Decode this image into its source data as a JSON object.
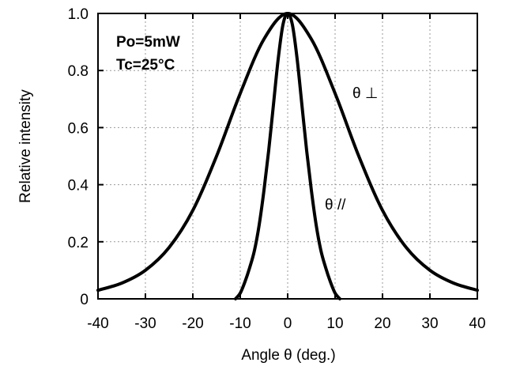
{
  "chart_data": {
    "type": "line",
    "xlabel": "Angle θ (deg.)",
    "ylabel": "Relative intensity",
    "xlim": [
      -40,
      40
    ],
    "ylim": [
      0,
      1
    ],
    "xticks": [
      -40,
      -30,
      -20,
      -10,
      0,
      10,
      20,
      30,
      40
    ],
    "yticks": [
      0,
      0.2,
      0.4,
      0.6,
      0.8,
      1.0
    ],
    "xtick_labels": [
      "-40",
      "-30",
      "-20",
      "-10",
      "0",
      "10",
      "20",
      "30",
      "40"
    ],
    "ytick_labels": [
      "0",
      "0.2",
      "0.4",
      "0.6",
      "0.8",
      "1.0"
    ],
    "grid": true,
    "annotations": [
      "Po=5mW",
      "Tc=25°C"
    ],
    "series": [
      {
        "name": "θ ⊥",
        "x": [
          -40,
          -35,
          -30,
          -25,
          -20,
          -15,
          -10,
          -5,
          0,
          5,
          10,
          15,
          20,
          25,
          30,
          35,
          40
        ],
        "y": [
          0.03,
          0.055,
          0.1,
          0.18,
          0.31,
          0.5,
          0.72,
          0.91,
          1.0,
          0.91,
          0.72,
          0.5,
          0.31,
          0.18,
          0.1,
          0.055,
          0.03
        ]
      },
      {
        "name": "θ //",
        "x": [
          -11,
          -10,
          -9,
          -8,
          -7,
          -6,
          -5,
          -4,
          -3,
          -2,
          -1,
          0,
          1,
          2,
          3,
          4,
          5,
          6,
          7,
          8,
          9,
          10,
          11
        ],
        "y": [
          0.0,
          0.02,
          0.06,
          0.11,
          0.17,
          0.26,
          0.38,
          0.52,
          0.68,
          0.84,
          0.96,
          1.0,
          0.96,
          0.84,
          0.68,
          0.52,
          0.38,
          0.26,
          0.17,
          0.11,
          0.06,
          0.02,
          0.0
        ]
      }
    ]
  }
}
